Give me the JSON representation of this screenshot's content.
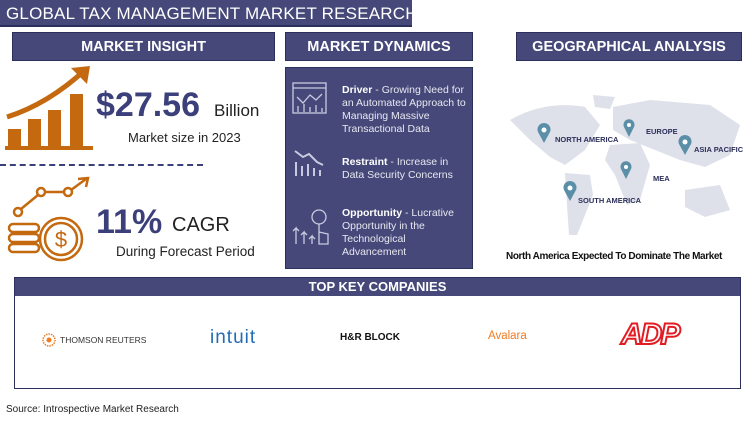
{
  "title": "GLOBAL TAX MANAGEMENT MARKET RESEARCH REPORT",
  "sections": {
    "insight": "MARKET INSIGHT",
    "dynamics": "MARKET DYNAMICS",
    "geo": "GEOGRAPHICAL ANALYSIS",
    "companies": "TOP KEY COMPANIES"
  },
  "insight": {
    "market_value": "$27.56",
    "market_unit": "Billion",
    "market_caption": "Market size in 2023",
    "cagr_value": "11%",
    "cagr_label": "CAGR",
    "cagr_caption": "During Forecast Period"
  },
  "dynamics": [
    {
      "label": "Driver",
      "text": " - Growing Need for an Automated Approach to Managing Massive Transactional Data",
      "icon": "analytics-dashboard-icon"
    },
    {
      "label": "Restraint",
      "text": " - Increase in Data Security Concerns",
      "icon": "declining-chart-icon"
    },
    {
      "label": "Opportunity",
      "text": " - Lucrative Opportunity in the Technological Advancement",
      "icon": "growth-touch-icon"
    }
  ],
  "geo": {
    "regions": [
      "NORTH AMERICA",
      "EUROPE",
      "ASIA PACIFIC",
      "MEA",
      "SOUTH AMERICA"
    ],
    "caption": "North America Expected To Dominate The Market"
  },
  "companies": [
    "THOMSON REUTERS",
    "intuit",
    "H&R BLOCK",
    "Avalara",
    "ADP"
  ],
  "source": "Source: Introspective Market Research",
  "colors": {
    "navy": "#454878",
    "orange": "#c4690f",
    "map": "#dfe1ea",
    "pin": "#5b8fa8",
    "adp_red": "#e31b23",
    "intuit_blue": "#236cb5",
    "avalara_orange": "#f07b22"
  }
}
